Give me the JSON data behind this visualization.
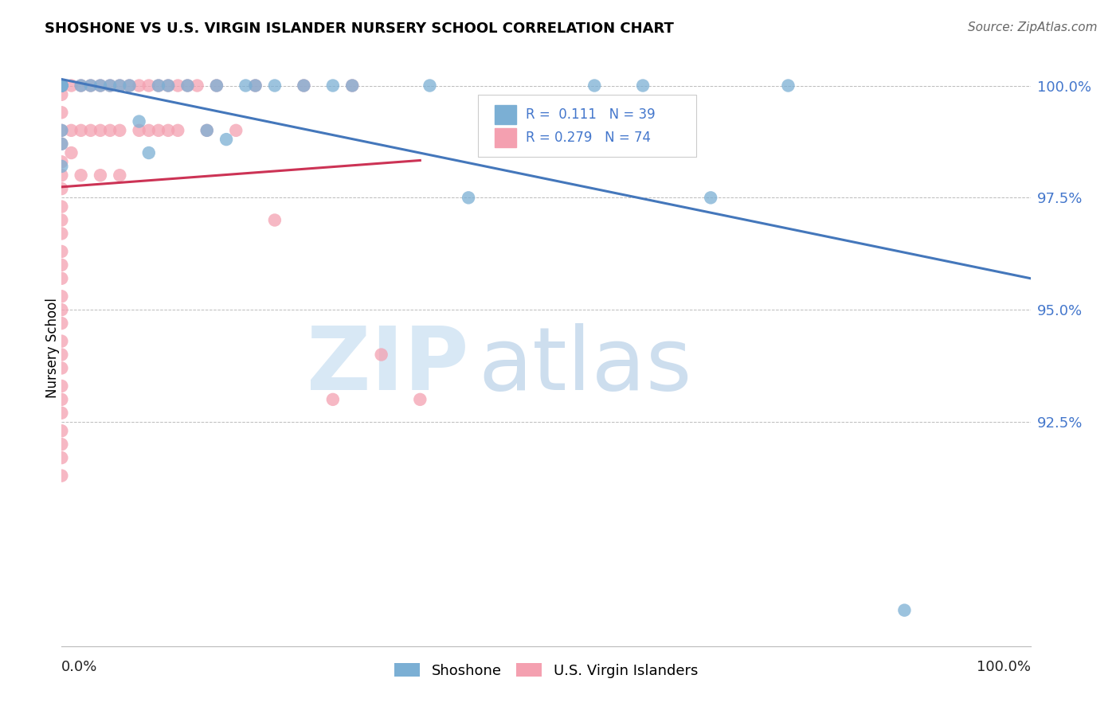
{
  "title": "SHOSHONE VS U.S. VIRGIN ISLANDER NURSERY SCHOOL CORRELATION CHART",
  "source": "Source: ZipAtlas.com",
  "ylabel": "Nursery School",
  "xlim": [
    0.0,
    1.0
  ],
  "ylim": [
    0.875,
    1.008
  ],
  "yticks": [
    0.925,
    0.95,
    0.975,
    1.0
  ],
  "ytick_labels": [
    "92.5%",
    "95.0%",
    "97.5%",
    "100.0%"
  ],
  "legend_r_blue": "0.111",
  "legend_n_blue": "39",
  "legend_r_pink": "0.279",
  "legend_n_pink": "74",
  "blue_color": "#7BAFD4",
  "pink_color": "#F4A0B0",
  "blue_line_color": "#4477BB",
  "pink_line_color": "#CC3355",
  "shoshone_x": [
    0.0,
    0.0,
    0.0,
    0.0,
    0.0,
    0.0,
    0.0,
    0.0,
    0.0,
    0.0,
    0.0,
    0.0,
    0.02,
    0.03,
    0.04,
    0.05,
    0.06,
    0.07,
    0.08,
    0.09,
    0.1,
    0.11,
    0.13,
    0.15,
    0.16,
    0.17,
    0.19,
    0.2,
    0.22,
    0.25,
    0.28,
    0.3,
    0.38,
    0.42,
    0.55,
    0.6,
    0.67,
    0.75,
    0.87
  ],
  "shoshone_y": [
    1.0,
    1.0,
    1.0,
    1.0,
    1.0,
    1.0,
    1.0,
    1.0,
    1.0,
    0.99,
    0.987,
    0.982,
    1.0,
    1.0,
    1.0,
    1.0,
    1.0,
    1.0,
    0.992,
    0.985,
    1.0,
    1.0,
    1.0,
    0.99,
    1.0,
    0.988,
    1.0,
    1.0,
    1.0,
    1.0,
    1.0,
    1.0,
    1.0,
    0.975,
    1.0,
    1.0,
    0.975,
    1.0,
    0.883
  ],
  "usvi_x": [
    0.0,
    0.0,
    0.0,
    0.0,
    0.0,
    0.0,
    0.0,
    0.0,
    0.0,
    0.0,
    0.0,
    0.0,
    0.0,
    0.0,
    0.0,
    0.0,
    0.0,
    0.0,
    0.0,
    0.0,
    0.0,
    0.0,
    0.0,
    0.0,
    0.0,
    0.0,
    0.0,
    0.0,
    0.0,
    0.0,
    0.0,
    0.0,
    0.0,
    0.0,
    0.0,
    0.01,
    0.01,
    0.01,
    0.02,
    0.02,
    0.02,
    0.03,
    0.03,
    0.04,
    0.04,
    0.04,
    0.05,
    0.05,
    0.06,
    0.06,
    0.06,
    0.07,
    0.08,
    0.08,
    0.09,
    0.09,
    0.1,
    0.1,
    0.11,
    0.11,
    0.12,
    0.12,
    0.13,
    0.14,
    0.15,
    0.16,
    0.18,
    0.2,
    0.22,
    0.25,
    0.28,
    0.3,
    0.33,
    0.37
  ],
  "usvi_y": [
    1.0,
    1.0,
    1.0,
    1.0,
    1.0,
    1.0,
    1.0,
    1.0,
    1.0,
    0.998,
    0.994,
    0.99,
    0.987,
    0.983,
    0.98,
    0.977,
    0.973,
    0.97,
    0.967,
    0.963,
    0.96,
    0.957,
    0.953,
    0.95,
    0.947,
    0.943,
    0.94,
    0.937,
    0.933,
    0.93,
    0.927,
    0.923,
    0.92,
    0.917,
    0.913,
    1.0,
    0.99,
    0.985,
    1.0,
    0.99,
    0.98,
    1.0,
    0.99,
    1.0,
    0.99,
    0.98,
    1.0,
    0.99,
    1.0,
    0.99,
    0.98,
    1.0,
    1.0,
    0.99,
    1.0,
    0.99,
    1.0,
    0.99,
    1.0,
    0.99,
    1.0,
    0.99,
    1.0,
    1.0,
    0.99,
    1.0,
    0.99,
    1.0,
    0.97,
    1.0,
    0.93,
    1.0,
    0.94,
    0.93
  ]
}
